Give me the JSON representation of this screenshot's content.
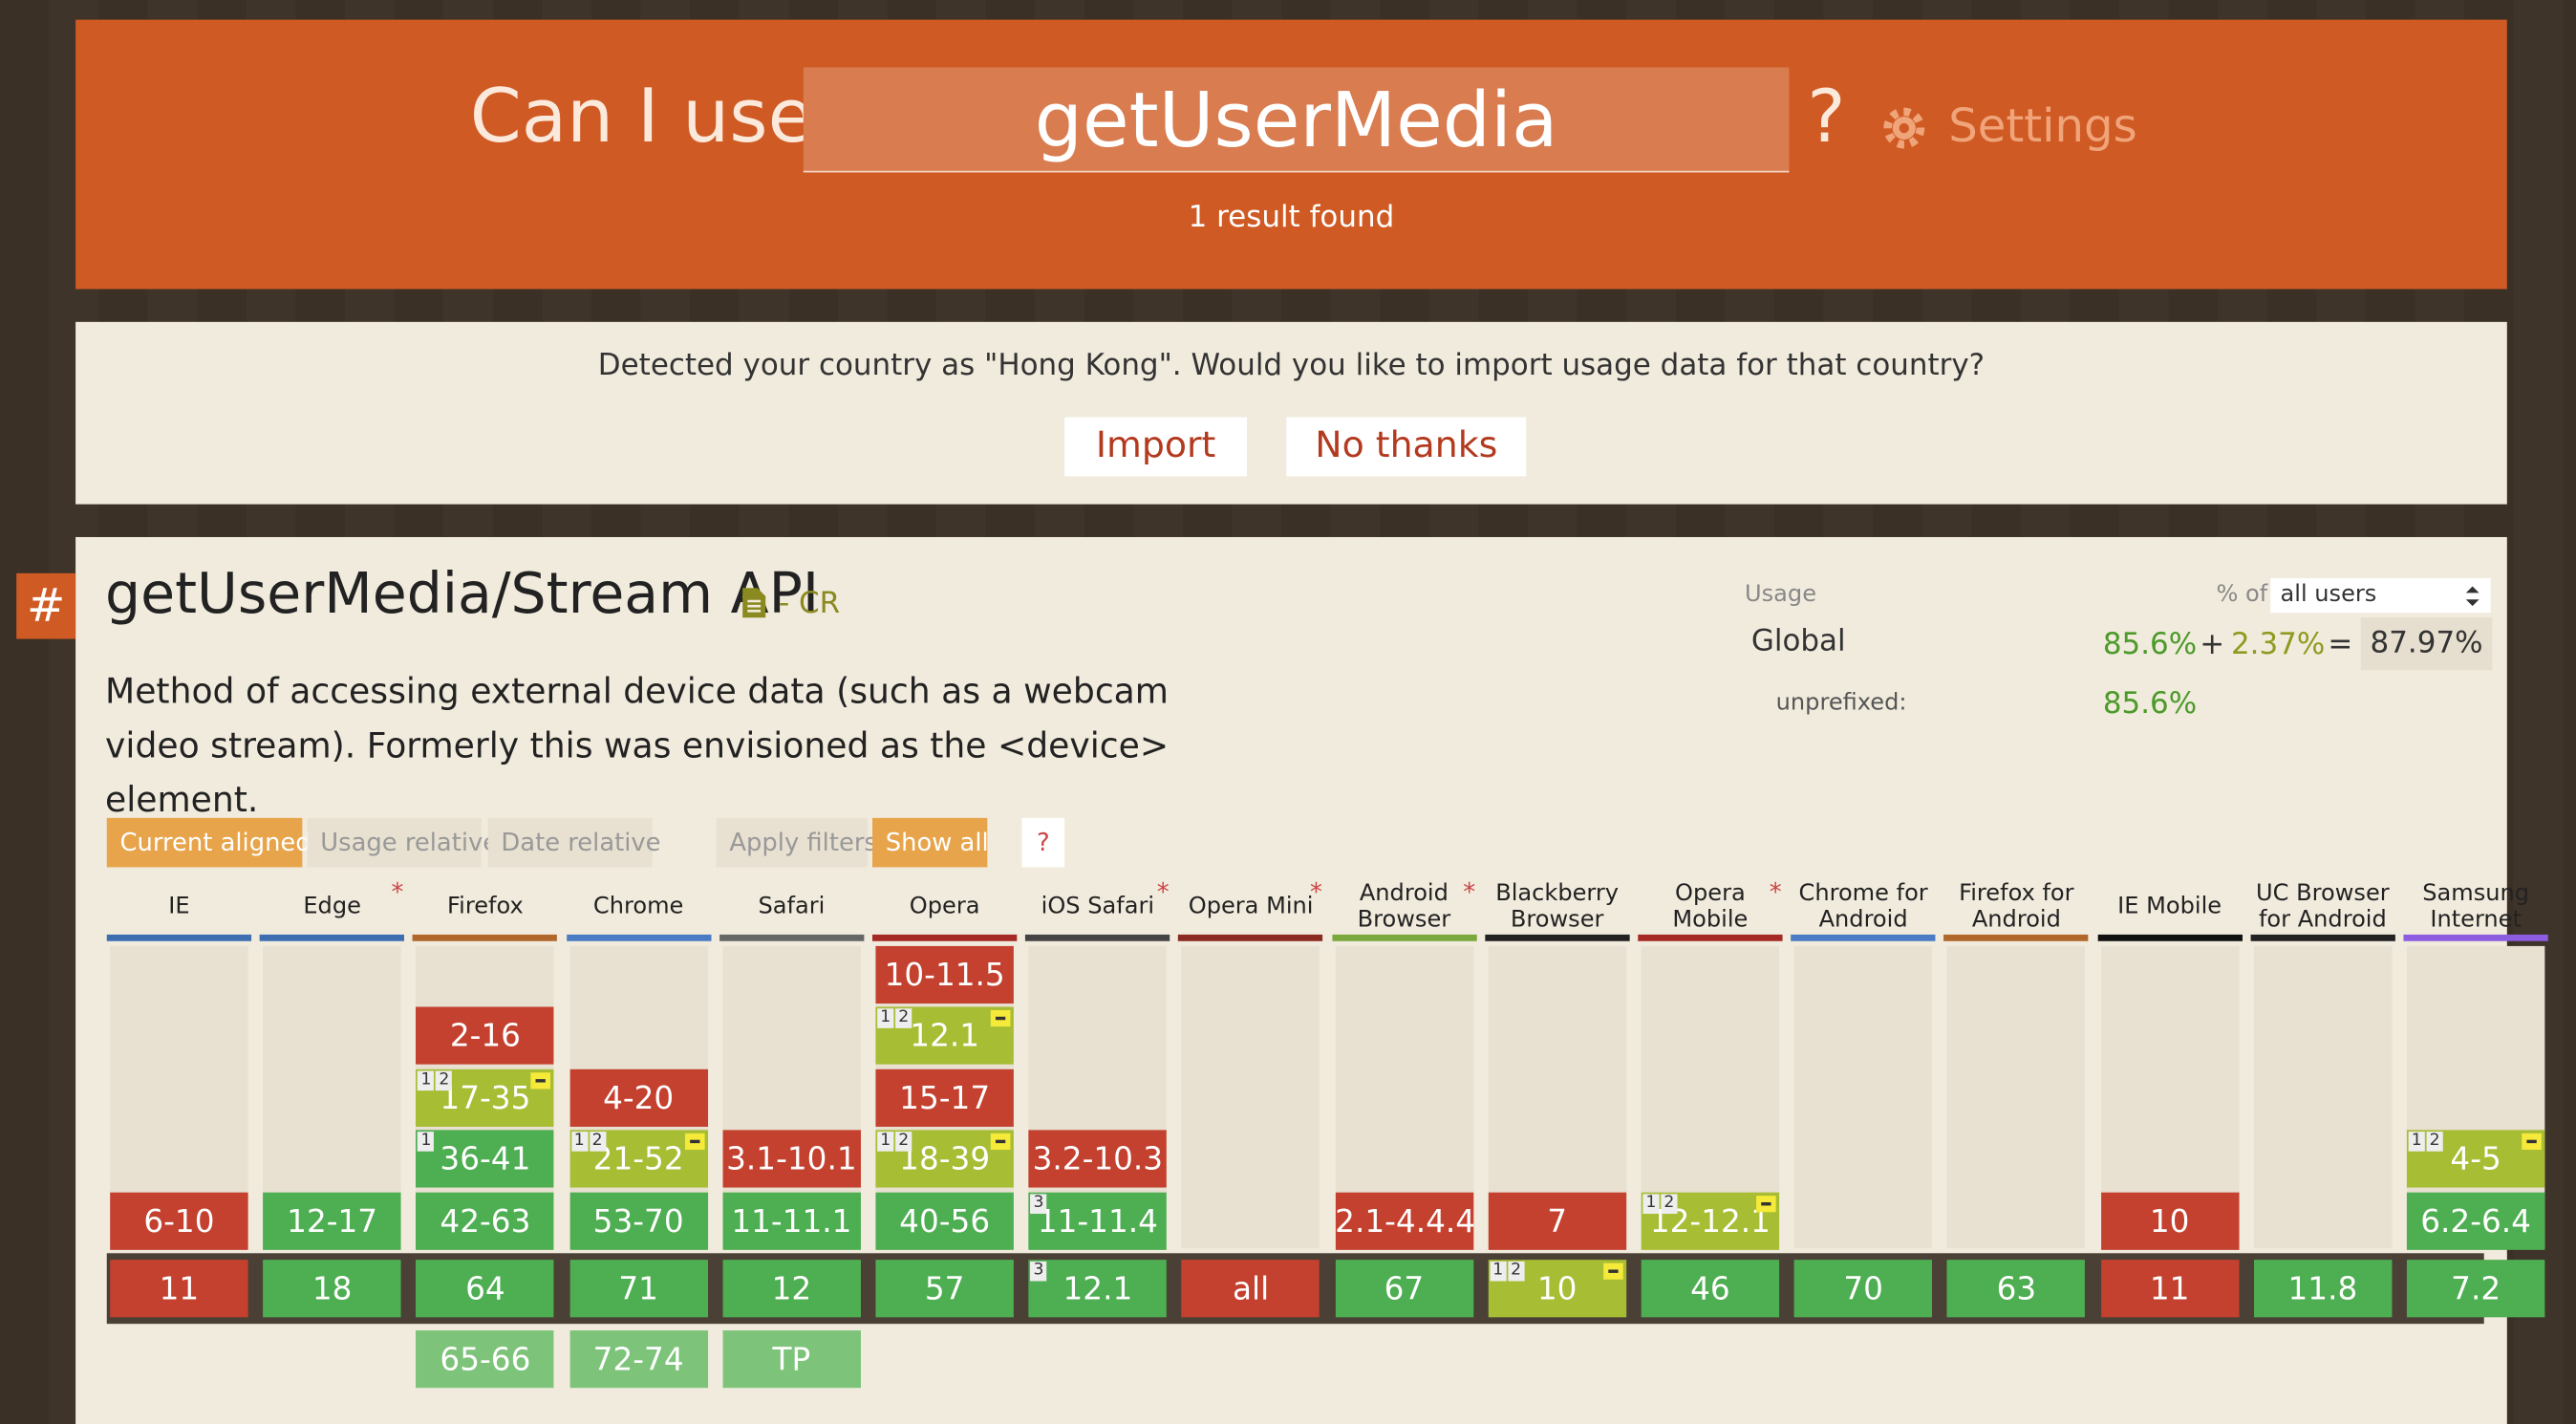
{
  "header": {
    "prefix": "Can I use",
    "query": "getUserMedia",
    "question": "?",
    "settings": "Settings",
    "results": "1 result found"
  },
  "banner": {
    "message": "Detected your country as \"Hong Kong\". Would you like to import usage data for that country?",
    "import": "Import",
    "dismiss": "No thanks"
  },
  "feature": {
    "anchor": "#",
    "title": "getUserMedia/Stream API",
    "status": "- CR",
    "description": "Method of accessing external device data (such as a webcam video stream). Formerly this was envisioned as the <device> element.",
    "usage": {
      "label": "Usage",
      "percent_of": "% of",
      "users": "all users",
      "region": "Global",
      "supported": "85.6%",
      "plus": "+",
      "partial": "2.37%",
      "equals": "=",
      "total": "87.97%",
      "unprefixed_label": "unprefixed:",
      "unprefixed": "85.6%"
    },
    "filters": [
      "Current aligned",
      "Usage relative",
      "Date relative"
    ],
    "apply": "Apply filters",
    "show_all": "Show all",
    "help": "?",
    "browsers": [
      {
        "name": "IE",
        "color": "#3d6fb0",
        "cells": [
          {
            "row": 4,
            "label": "6-10",
            "support": "n"
          },
          {
            "row": 5,
            "label": "11",
            "support": "n"
          }
        ]
      },
      {
        "name": "Edge",
        "asterisk": "*",
        "color": "#3d6fb0",
        "cells": [
          {
            "row": 4,
            "label": "12-17",
            "support": "y"
          },
          {
            "row": 5,
            "label": "18",
            "support": "y"
          }
        ]
      },
      {
        "name": "Firefox",
        "color": "#b0672c",
        "cells": [
          {
            "row": 1,
            "label": "2-16",
            "support": "n"
          },
          {
            "row": 2,
            "label": "17-35",
            "support": "a",
            "notes": [
              "1",
              "2"
            ]
          },
          {
            "row": 3,
            "label": "36-41",
            "support": "y",
            "notes": [
              "1"
            ]
          },
          {
            "row": 4,
            "label": "42-63",
            "support": "y"
          },
          {
            "row": 5,
            "label": "64",
            "support": "y"
          },
          {
            "row": 6,
            "label": "65-66",
            "support": "f"
          }
        ]
      },
      {
        "name": "Chrome",
        "color": "#4a7bc4",
        "cells": [
          {
            "row": 2,
            "label": "4-20",
            "support": "n"
          },
          {
            "row": 3,
            "label": "21-52",
            "support": "a",
            "notes": [
              "1",
              "2"
            ]
          },
          {
            "row": 4,
            "label": "53-70",
            "support": "y"
          },
          {
            "row": 5,
            "label": "71",
            "support": "y"
          },
          {
            "row": 6,
            "label": "72-74",
            "support": "f"
          }
        ]
      },
      {
        "name": "Safari",
        "color": "#666666",
        "cells": [
          {
            "row": 3,
            "label": "3.1-10.1",
            "support": "n"
          },
          {
            "row": 4,
            "label": "11-11.1",
            "support": "y"
          },
          {
            "row": 5,
            "label": "12",
            "support": "y"
          },
          {
            "row": 6,
            "label": "TP",
            "support": "f"
          }
        ]
      },
      {
        "name": "Opera",
        "color": "#a52a24",
        "cells": [
          {
            "row": 0,
            "label": "10-11.5",
            "support": "n"
          },
          {
            "row": 1,
            "label": "12.1",
            "support": "a",
            "notes": [
              "1",
              "2"
            ]
          },
          {
            "row": 2,
            "label": "15-17",
            "support": "n"
          },
          {
            "row": 3,
            "label": "18-39",
            "support": "a",
            "notes": [
              "1",
              "2"
            ]
          },
          {
            "row": 4,
            "label": "40-56",
            "support": "y"
          },
          {
            "row": 5,
            "label": "57",
            "support": "y"
          }
        ]
      },
      {
        "name": "iOS Safari",
        "asterisk": "*",
        "color": "#444444",
        "cells": [
          {
            "row": 3,
            "label": "3.2-10.3",
            "support": "n"
          },
          {
            "row": 4,
            "label": "11-11.4",
            "support": "y",
            "notes": [
              "3"
            ]
          },
          {
            "row": 5,
            "label": "12.1",
            "support": "y",
            "notes": [
              "3"
            ]
          }
        ]
      },
      {
        "name": "Opera Mini",
        "asterisk": "*",
        "color": "#8b2a20",
        "cells": [
          {
            "row": 5,
            "label": "all",
            "support": "n"
          }
        ]
      },
      {
        "name": "Android Browser",
        "asterisk": "*",
        "color": "#7aa83c",
        "cells": [
          {
            "row": 4,
            "label": "2.1-4.4.4",
            "support": "n"
          },
          {
            "row": 5,
            "label": "67",
            "support": "y"
          }
        ]
      },
      {
        "name": "Blackberry Browser",
        "color": "#222222",
        "cells": [
          {
            "row": 4,
            "label": "7",
            "support": "n"
          },
          {
            "row": 5,
            "label": "10",
            "support": "a",
            "notes": [
              "1",
              "2"
            ]
          }
        ]
      },
      {
        "name": "Opera Mobile",
        "asterisk": "*",
        "color": "#a52a24",
        "cells": [
          {
            "row": 4,
            "label": "12-12.1",
            "support": "a",
            "notes": [
              "1",
              "2"
            ]
          },
          {
            "row": 5,
            "label": "46",
            "support": "y"
          }
        ]
      },
      {
        "name": "Chrome for Android",
        "color": "#4a7bc4",
        "cells": [
          {
            "row": 5,
            "label": "70",
            "support": "y"
          }
        ]
      },
      {
        "name": "Firefox for Android",
        "color": "#b0672c",
        "cells": [
          {
            "row": 5,
            "label": "63",
            "support": "y"
          }
        ]
      },
      {
        "name": "IE Mobile",
        "color": "#111111",
        "cells": [
          {
            "row": 4,
            "label": "10",
            "support": "n"
          },
          {
            "row": 5,
            "label": "11",
            "support": "n"
          }
        ]
      },
      {
        "name": "UC Browser for Android",
        "color": "#222222",
        "cells": [
          {
            "row": 5,
            "label": "11.8",
            "support": "y"
          }
        ]
      },
      {
        "name": "Samsung Internet",
        "color": "#8c5de0",
        "cells": [
          {
            "row": 3,
            "label": "4-5",
            "support": "a",
            "notes": [
              "1",
              "2"
            ]
          },
          {
            "row": 4,
            "label": "6.2-6.4",
            "support": "y"
          },
          {
            "row": 5,
            "label": "7.2",
            "support": "y"
          }
        ]
      }
    ]
  }
}
